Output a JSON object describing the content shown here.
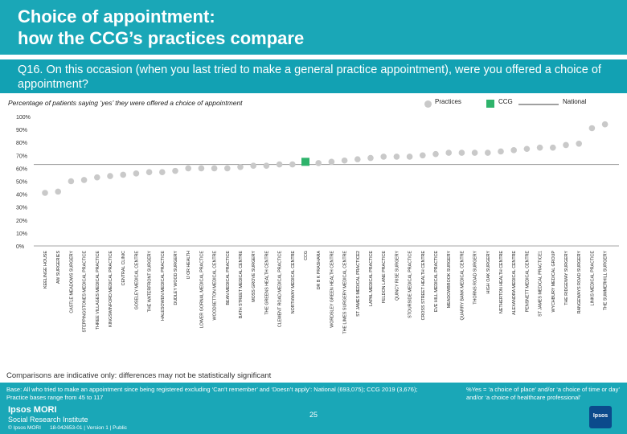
{
  "header": {
    "title_line1": "Choice of appointment:",
    "title_line2": "how the CCG’s practices compare"
  },
  "question": {
    "text": "Q16. On this occasion (when you last tried to make a general practice appointment), were you offered a choice of appointment?"
  },
  "legend": {
    "practices": "Practices",
    "ccg": "CCG",
    "national": "National"
  },
  "colors": {
    "teal": "#1aa7b7",
    "practice": "#c9c9c9",
    "ccg": "#2eb36b",
    "national": "#a0a0a0"
  },
  "chart_data": {
    "type": "scatter",
    "title": "Percentage of patients saying ‘yes’ they were offered a choice of appointment",
    "ylabel": "",
    "xlabel": "",
    "ylim": [
      0,
      100
    ],
    "yticks": [
      "0%",
      "10%",
      "20%",
      "30%",
      "40%",
      "50%",
      "60%",
      "70%",
      "80%",
      "90%",
      "100%"
    ],
    "national": 63,
    "categories": [
      "KEELINGE HOUSE",
      "AW SURGERIES",
      "CASTLE MEADOWS SURGERY",
      "STEPPINGSTONES MEDICAL PRACTICE",
      "THREE VILLAGES MEDICAL PRACTICE",
      "KINGSWINFORD MEDICAL PRACTICE",
      "CENTRAL CLINIC",
      "GOSELEY MEDICAL CENTRE",
      "THE WATERFRONT SURGERY",
      "HALESOWEN MEDICAL PRACTICE",
      "DUDLEY WOOD SURGERY",
      "IJ OR HEALTH",
      "LOWER GORNAL MEDICAL PRACTICE",
      "WOODSETTON MEDICAL CENTRE",
      "BEAN MEDICAL PRACTICE",
      "BATH STREET MEDICAL CENTRE",
      "MOSS GROVE SURGERY",
      "THE GREENS HEALTH CENTRE",
      "CLEMENT ROAD MEDICAL PRACTICE",
      "NORTHWAY MEDICAL CENTRE",
      "CCG",
      "DR B K PRASHARA",
      "WORDSLEY GREEN HEALTH CENTRE",
      "THE LIMES SURGERY MEDICAL CENTRE",
      "ST JAMES MEDICAL PRACTICE2",
      "LAPAL MEDICAL PRACTICE",
      "FELDON LANE PRACTICE",
      "QUINCY RISE SURGERY",
      "STOURSIDE MEDICAL PRACTICE",
      "CROSS STREET HEALTH CENTRE",
      "EVE HILL MEDICAL PRACTICE",
      "MEADOWBROOK SURGERY",
      "QUARRY BANK MEDICAL CENTRE",
      "THORNS ROAD SURGERY",
      "HIGH OAK SURGERY",
      "NETHERTON HEALTH CENTRE",
      "ALEXANDRA MEDICAL CENTRE",
      "PENSNETT MEDICAL CENTRE",
      "ST JAMES MEDICAL PRACTICE1",
      "WYCHBURY MEDICAL GROUP",
      "THE RIDGEWAY SURGERY",
      "RANGEWAYS ROAD SURGERY",
      "LINKS MEDICAL PRACTICE",
      "THE SUMMERHILL SURGERY"
    ],
    "values": [
      41,
      42,
      50,
      51,
      53,
      54,
      55,
      56,
      57,
      57,
      58,
      60,
      60,
      60,
      60,
      61,
      62,
      62,
      63,
      63,
      65,
      64,
      65,
      66,
      67,
      68,
      69,
      69,
      69,
      70,
      71,
      72,
      72,
      72,
      72,
      73,
      74,
      75,
      76,
      76,
      78,
      79,
      91,
      94
    ],
    "kinds": [
      "p",
      "p",
      "p",
      "p",
      "p",
      "p",
      "p",
      "p",
      "p",
      "p",
      "p",
      "p",
      "p",
      "p",
      "p",
      "p",
      "p",
      "p",
      "p",
      "p",
      "c",
      "p",
      "p",
      "p",
      "p",
      "p",
      "p",
      "p",
      "p",
      "p",
      "p",
      "p",
      "p",
      "p",
      "p",
      "p",
      "p",
      "p",
      "p",
      "p",
      "p",
      "p",
      "p",
      "p"
    ]
  },
  "comparisons": "Comparisons are indicative only: differences may not be statistically significant",
  "footer": {
    "base": "Base: All who tried to make an appointment since being registered excluding ‘Can’t remember’ and ‘Doesn’t apply’: National (693,075); CCG 2019 (3,676); Practice bases range from 45 to 117",
    "note": "%Yes = ‘a choice of place’ and/or ‘a choice of time or day’ and/or ‘a choice of healthcare professional’",
    "logo_line1": "Ipsos MORI",
    "logo_line2": "Social Research Institute",
    "copyright": "© Ipsos MORI",
    "docref": "18-042653-01 | Version 1 | Public",
    "page": "25",
    "brand": "Ipsos"
  }
}
